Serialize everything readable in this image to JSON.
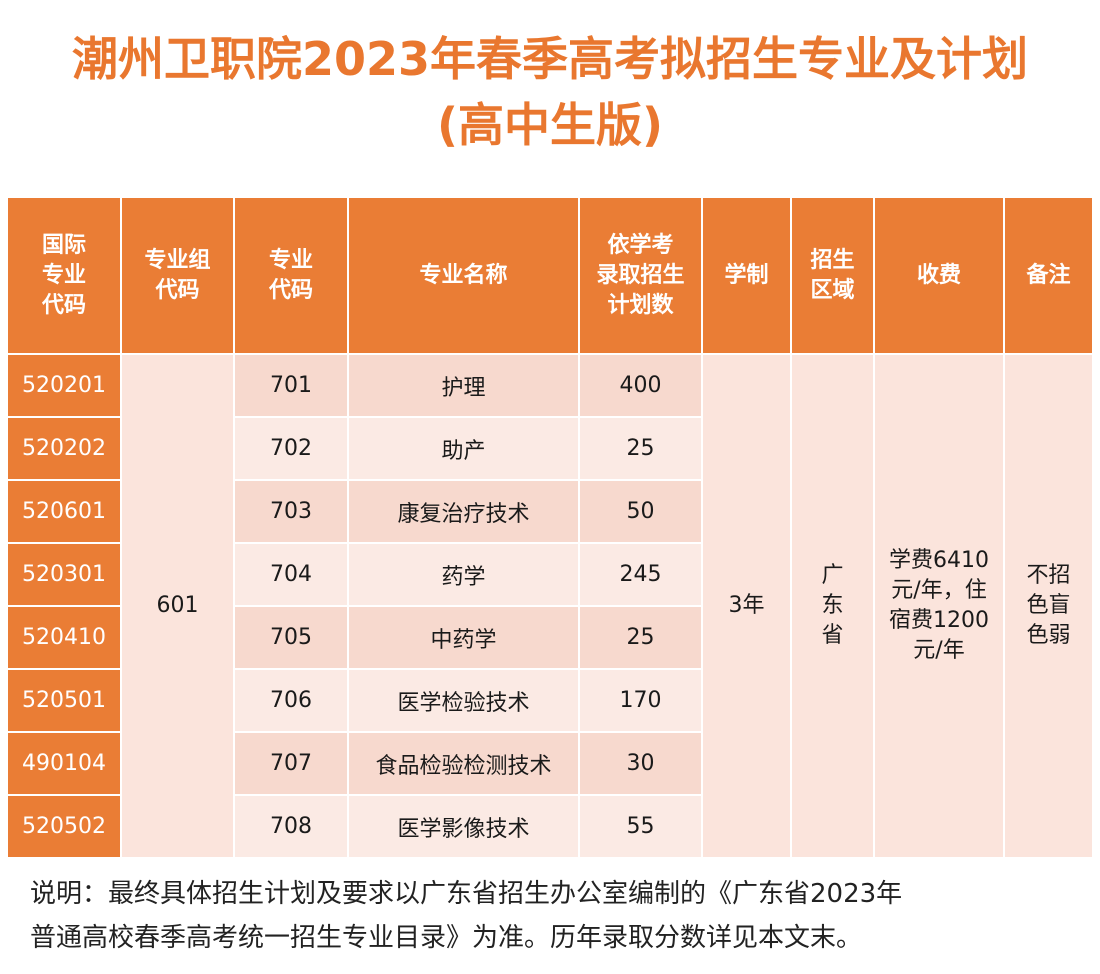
{
  "header": {
    "title": "潮州卫职院2023年春季高考拟招生专业及计划",
    "subtitle": "(高中生版)"
  },
  "table": {
    "columns": [
      [
        "国际",
        "专业",
        "代码"
      ],
      [
        "专业组",
        "代码"
      ],
      [
        "专业",
        "代码"
      ],
      [
        "专业名称"
      ],
      [
        "依学考",
        "录取招生",
        "计划数"
      ],
      [
        "学制"
      ],
      [
        "招生",
        "区域"
      ],
      [
        "收费"
      ],
      [
        "备注"
      ]
    ],
    "rows": [
      [
        "520201",
        "701",
        "护理",
        "400"
      ],
      [
        "520202",
        "702",
        "助产",
        "25"
      ],
      [
        "520601",
        "703",
        "康复治疗技术",
        "50"
      ],
      [
        "520301",
        "704",
        "药学",
        "245"
      ],
      [
        "520410",
        "705",
        "中药学",
        "25"
      ],
      [
        "520501",
        "706",
        "医学检验技术",
        "170"
      ],
      [
        "490104",
        "707",
        "食品检验检测技术",
        "30"
      ],
      [
        "520502",
        "708",
        "医学影像技术",
        "55"
      ]
    ],
    "group_code": "601",
    "duration": "3年",
    "region": [
      "广",
      "东",
      "省"
    ],
    "fee": [
      "学费6410",
      "元/年，住",
      "宿费1200",
      "元/年"
    ],
    "remark": [
      "不招",
      "色盲",
      "色弱"
    ]
  },
  "note": [
    "说明：最终具体招生计划及要求以广东省招生办公室编制的《广东省2023年",
    "普通高校春季高考统一招生专业目录》为准。历年录取分数详见本文末。"
  ]
}
